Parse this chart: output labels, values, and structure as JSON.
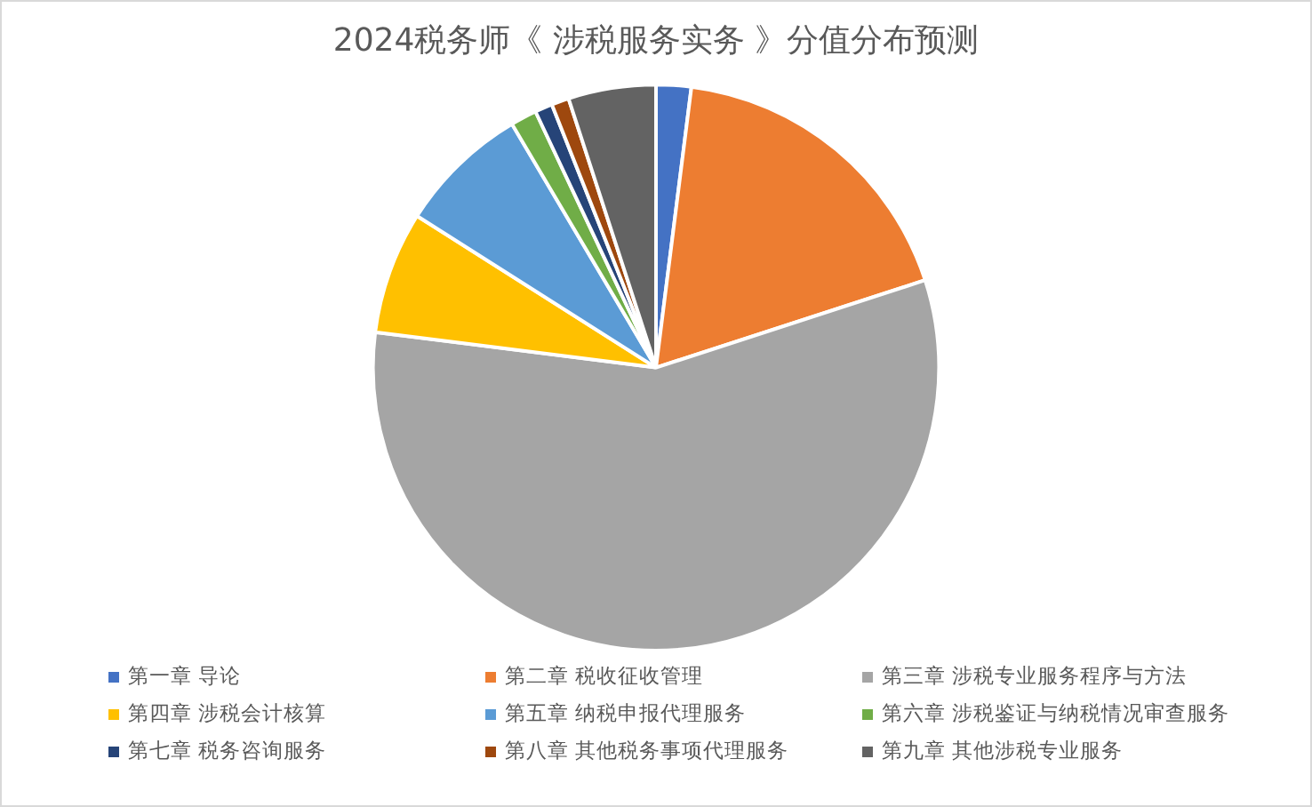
{
  "chart_data": {
    "type": "pie",
    "title": "2024税务师《 涉税服务实务 》分值分布预测",
    "categories": [
      "第一章 导论",
      "第二章 税收征收管理",
      "第三章 涉税专业服务程序与方法",
      "第四章 涉税会计核算",
      "第五章 纳税申报代理服务",
      "第六章 涉税鉴证与纳税情况审查服务",
      "第七章 税务咨询服务",
      "第八章 其他税务事项代理服务",
      "第九章 其他涉税专业服务"
    ],
    "values": [
      2,
      18,
      57,
      7,
      7.5,
      1.5,
      1,
      1,
      5
    ],
    "colors": [
      "#4472c4",
      "#ed7d31",
      "#a5a5a5",
      "#ffc000",
      "#5b9bd5",
      "#70ad47",
      "#264478",
      "#9e480e",
      "#636363"
    ],
    "legend": "bottom"
  }
}
